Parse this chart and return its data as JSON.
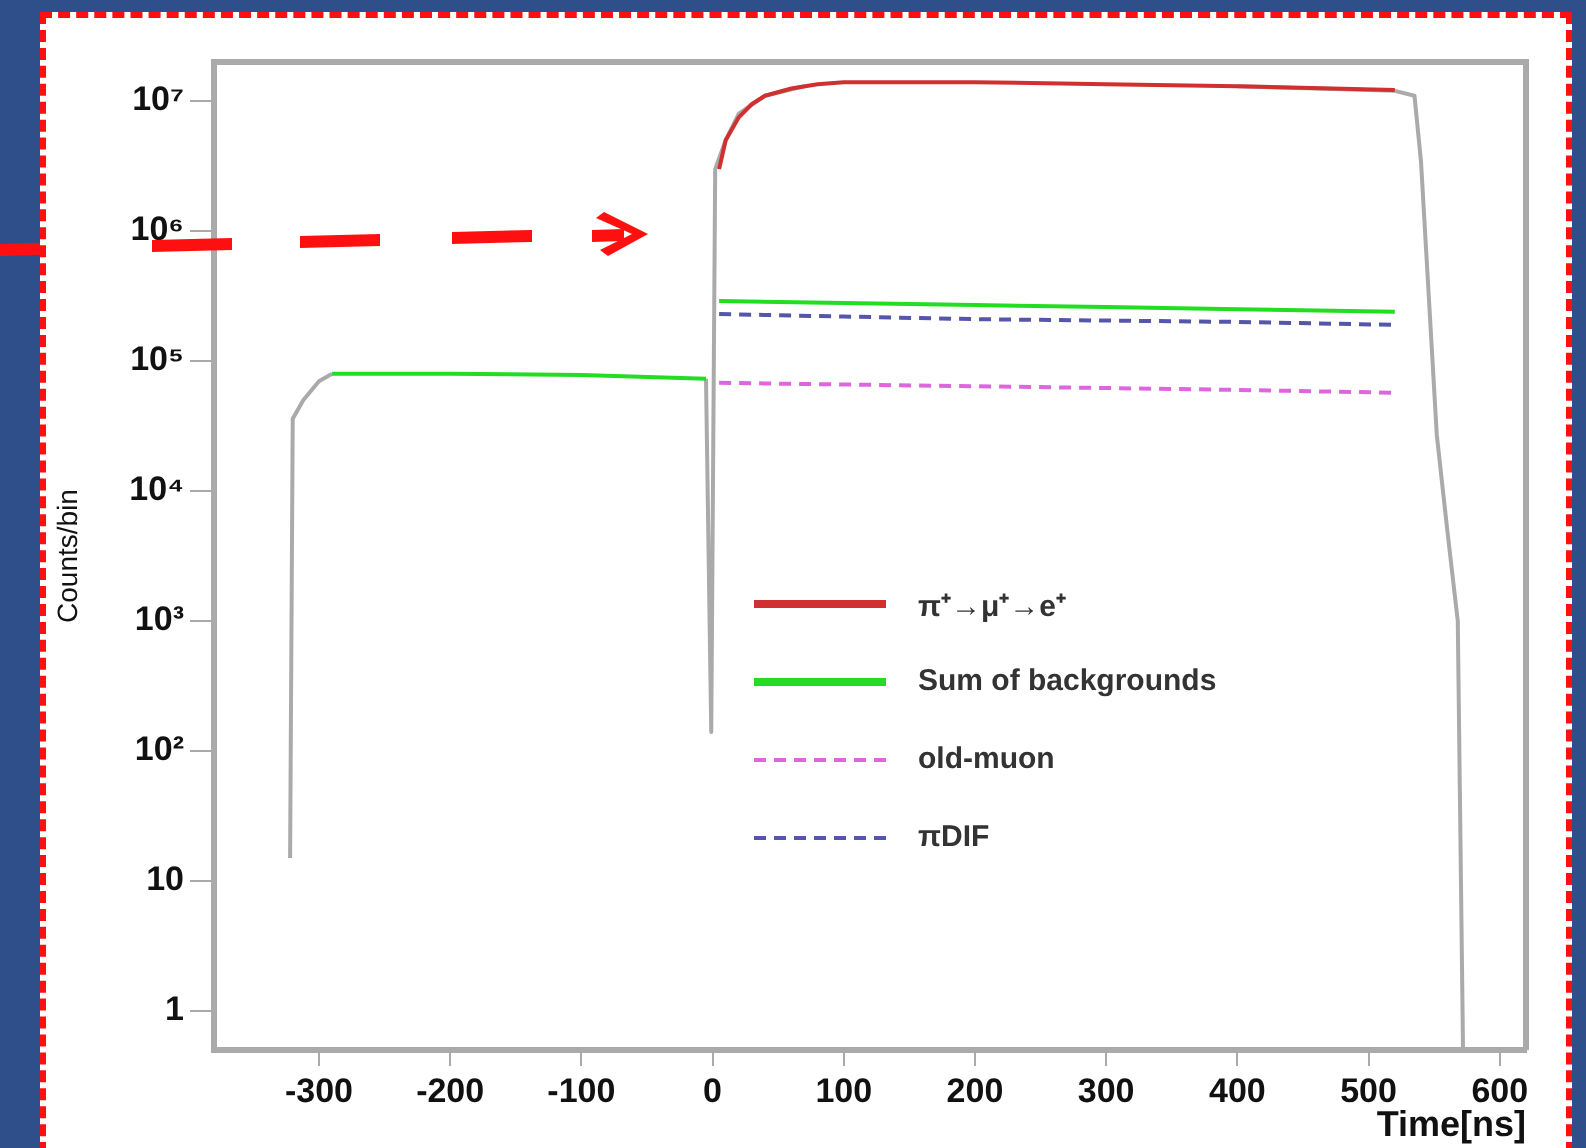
{
  "chart_data": {
    "type": "line",
    "xlabel": "Time[ns]",
    "ylabel": "Counts/bin",
    "log": "y",
    "xlim": [
      -380,
      620
    ],
    "ylim": [
      0.5,
      20000000
    ],
    "xticks": [
      -300,
      -200,
      -100,
      0,
      100,
      200,
      300,
      400,
      500,
      600
    ],
    "yticks": [
      1,
      10,
      {
        "value": 100,
        "label": "10²"
      },
      {
        "value": 1000,
        "label": "10³"
      },
      {
        "value": 10000,
        "label": "10⁴"
      },
      {
        "value": 100000,
        "label": "10⁵"
      },
      {
        "value": 1000000,
        "label": "10⁶"
      },
      {
        "value": 10000000,
        "label": "10⁷"
      }
    ],
    "legend": "right",
    "marker": "none",
    "series": [
      {
        "color": "#aaaaaa",
        "x": [
          -322,
          -320,
          -312,
          -300,
          -290,
          -200,
          -100,
          -5,
          -1,
          2,
          10,
          20,
          40,
          70,
          100,
          200,
          300,
          400,
          520,
          535,
          540,
          552,
          560,
          568,
          572
        ],
        "values": [
          15,
          36000,
          50000,
          70000,
          80000,
          null,
          null,
          73000,
          140,
          3000000,
          5000000,
          8000000,
          11000000,
          13000000,
          null,
          null,
          null,
          13000000,
          12000000,
          11000000,
          3400000,
          27000,
          5000,
          1000,
          0.5
        ]
      },
      {
        "name": "π⁺→μ⁺→e⁺",
        "color": "#d03030",
        "x": [
          5,
          10,
          20,
          30,
          40,
          60,
          80,
          100,
          200,
          300,
          400,
          520
        ],
        "values": [
          3000000,
          5000000,
          7500000,
          9500000,
          11000000,
          12500000,
          13500000,
          14000000,
          14000000,
          13500000,
          13000000,
          12200000
        ]
      },
      {
        "name": "Sum of backgrounds",
        "color": "#22dd22",
        "x": [
          -290,
          -200,
          -100,
          -5,
          -2,
          5,
          100,
          200,
          300,
          400,
          520
        ],
        "values": [
          80000,
          80000,
          78000,
          73000,
          null,
          290000,
          280000,
          270000,
          260000,
          250000,
          240000
        ]
      },
      {
        "name": "old-muon",
        "color": "#dd66dd",
        "line_style": "dashed",
        "x": [
          5,
          100,
          200,
          300,
          400,
          520
        ],
        "values": [
          68000,
          66000,
          64000,
          62000,
          60000,
          57000
        ]
      },
      {
        "name": "πDIF",
        "color": "#5555aa",
        "line_style": "dashed",
        "x": [
          5,
          100,
          200,
          300,
          400,
          520
        ],
        "values": [
          230000,
          220000,
          210000,
          205000,
          200000,
          190000
        ]
      }
    ]
  }
}
